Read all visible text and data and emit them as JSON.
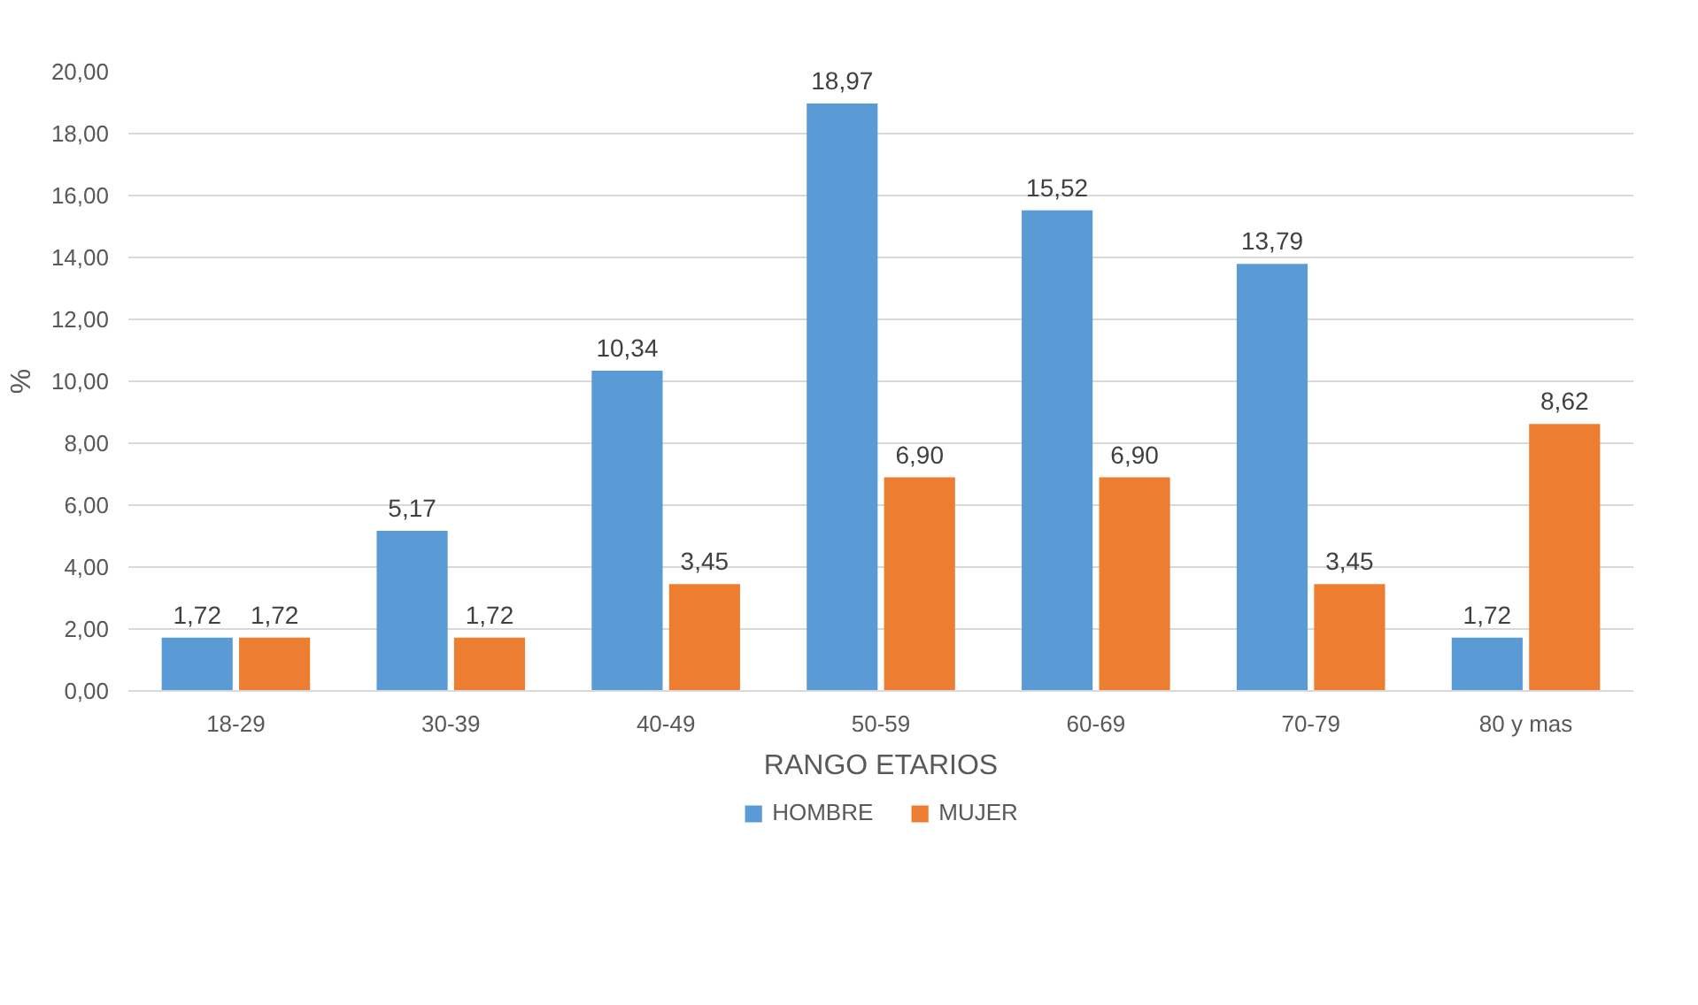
{
  "chart_data": {
    "type": "bar",
    "xlabel": "RANGO ETARIOS",
    "ylabel": "%",
    "categories": [
      "18-29",
      "30-39",
      "40-49",
      "50-59",
      "60-69",
      "70-79",
      "80 y mas"
    ],
    "series": [
      {
        "name": "HOMBRE",
        "color": "#5b9bd5",
        "values": [
          1.72,
          5.17,
          10.34,
          18.97,
          15.52,
          13.79,
          1.72
        ],
        "value_labels": [
          "1,72",
          "5,17",
          "10,34",
          "18,97",
          "15,52",
          "13,79",
          "1,72"
        ]
      },
      {
        "name": "MUJER",
        "color": "#ed7d31",
        "values": [
          1.72,
          1.72,
          3.45,
          6.9,
          6.9,
          3.45,
          8.62
        ],
        "value_labels": [
          "1,72",
          "1,72",
          "3,45",
          "6,90",
          "6,90",
          "3,45",
          "8,62"
        ]
      }
    ],
    "ylim": [
      0,
      20
    ],
    "yticks": [
      {
        "value": 0,
        "label": "0,00"
      },
      {
        "value": 2,
        "label": "2,00"
      },
      {
        "value": 4,
        "label": "4,00"
      },
      {
        "value": 6,
        "label": "6,00"
      },
      {
        "value": 8,
        "label": "8,00"
      },
      {
        "value": 10,
        "label": "10,00"
      },
      {
        "value": 12,
        "label": "12,00"
      },
      {
        "value": 14,
        "label": "14,00"
      },
      {
        "value": 16,
        "label": "16,00"
      },
      {
        "value": 18,
        "label": "18,00"
      },
      {
        "value": 20,
        "label": "20,00"
      }
    ],
    "grid": "y",
    "legend": "bottom"
  }
}
